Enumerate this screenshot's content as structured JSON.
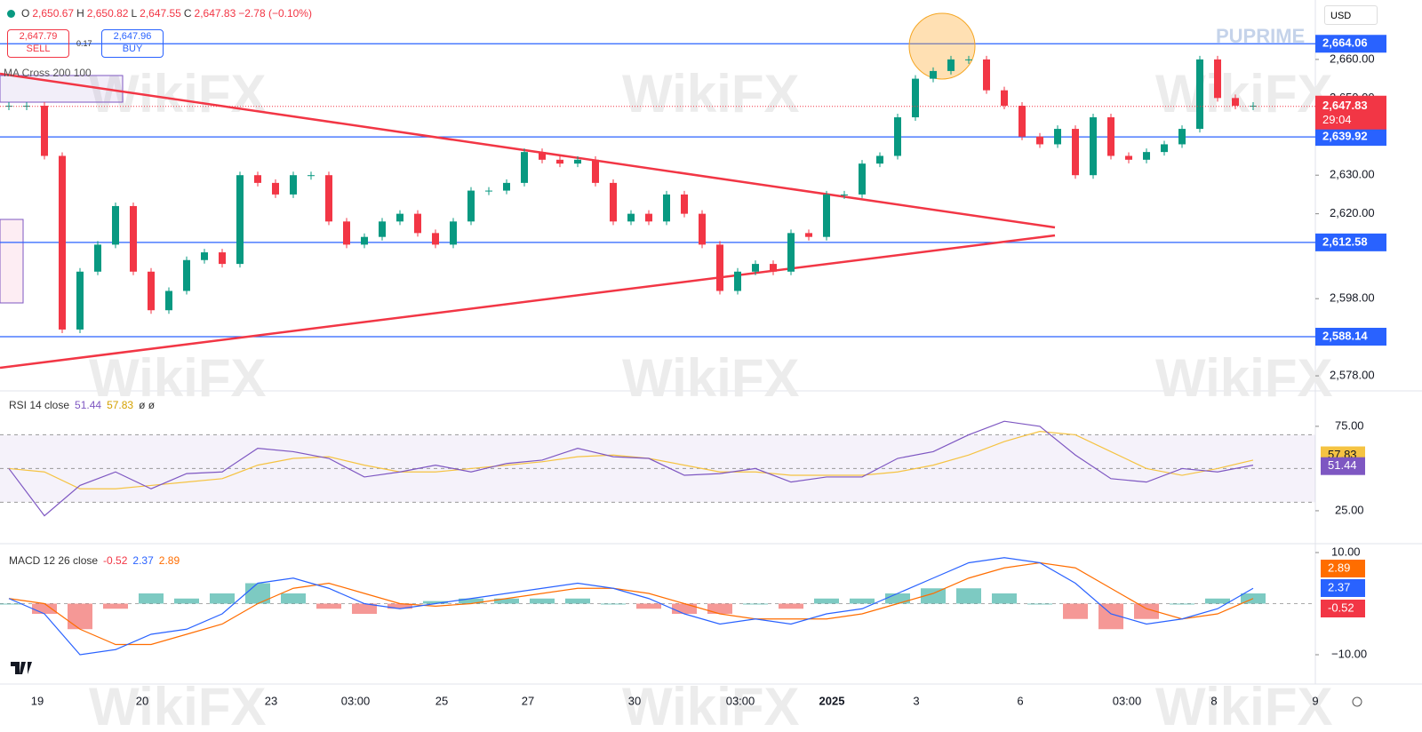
{
  "header": {
    "o_key": "O",
    "o": "2,650.67",
    "h_key": "H",
    "h": "2,650.82",
    "l_key": "L",
    "l": "2,647.55",
    "c_key": "C",
    "c": "2,647.83",
    "change": "−2.78 (−0.10%)"
  },
  "trade": {
    "sell_price": "2,647.79",
    "sell": "SELL",
    "spread": "0.17",
    "buy_price": "2,647.96",
    "buy": "BUY"
  },
  "ma_indicator": "MA Cross 200 100",
  "currency": "USD",
  "brand": "PUPRIME",
  "watermark": "WikiFX",
  "price_chart": {
    "type": "candlestick",
    "up_color": "#089981",
    "down_color": "#f23645",
    "level_color": "#2962ff",
    "closes": [
      2648,
      2648,
      2635,
      2590,
      2605,
      2612,
      2622,
      2605,
      2595,
      2600,
      2608,
      2610,
      2607,
      2630,
      2628,
      2625,
      2630,
      2630,
      2618,
      2612,
      2614,
      2618,
      2620,
      2615,
      2612,
      2618,
      2626,
      2626,
      2628,
      2636,
      2634,
      2633,
      2634,
      2628,
      2618,
      2620,
      2618,
      2625,
      2620,
      2612,
      2600,
      2605,
      2607,
      2605,
      2615,
      2614,
      2625,
      2625,
      2633,
      2635,
      2645,
      2655,
      2657,
      2660,
      2660,
      2652,
      2648,
      2640,
      2638,
      2642,
      2630,
      2645,
      2635,
      2634,
      2636,
      2638,
      2642,
      2660,
      2650,
      2648,
      2648
    ],
    "ylim": [
      2574.1,
      2675.4
    ],
    "yticks": [
      {
        "value": 2660,
        "label": "2,660.00"
      },
      {
        "value": 2650,
        "label": "2,650.00"
      },
      {
        "value": 2630,
        "label": "2,630.00"
      },
      {
        "value": 2620,
        "label": "2,620.00"
      },
      {
        "value": 2598,
        "label": "2,598.00"
      },
      {
        "value": 2578,
        "label": "2,578.00"
      }
    ],
    "levels": [
      {
        "value": 2664.06,
        "label": "2,664.06"
      },
      {
        "value": 2639.92,
        "label": "2,639.92"
      },
      {
        "value": 2612.58,
        "label": "2,612.58"
      },
      {
        "value": 2588.14,
        "label": "2,588.14"
      }
    ],
    "last_price": {
      "value": 2647.83,
      "label": "2,647.83"
    },
    "countdown": "29:04"
  },
  "rsi": {
    "title": "RSI 14 close",
    "last_rsi": 51.44,
    "last_ma": 57.83,
    "extra": "ø ø",
    "rsi_color": "#7e57c2",
    "ma_color": "#f5c342",
    "rsi": [
      50,
      22,
      40,
      48,
      38,
      47,
      48,
      62,
      60,
      56,
      45,
      48,
      52,
      48,
      53,
      55,
      62,
      57,
      56,
      46,
      47,
      50,
      42,
      45,
      45,
      56,
      60,
      70,
      78,
      75,
      58,
      44,
      42,
      50,
      48,
      52
    ],
    "rsi_ma": [
      50,
      48,
      38,
      38,
      40,
      42,
      44,
      52,
      56,
      57,
      52,
      48,
      48,
      50,
      52,
      54,
      57,
      58,
      56,
      52,
      48,
      48,
      46,
      46,
      46,
      48,
      52,
      58,
      66,
      72,
      70,
      60,
      50,
      46,
      50,
      55
    ],
    "ylim": [
      5.5,
      96
    ],
    "bands": [
      70,
      50,
      30
    ],
    "yticks": [
      {
        "value": 75,
        "label": "75.00"
      },
      {
        "value": 25,
        "label": "25.00"
      }
    ]
  },
  "macd": {
    "title": "MACD 12 26 close",
    "last_hist": -0.52,
    "last_macd": 2.37,
    "last_signal": 2.89,
    "macd_color": "#2962ff",
    "signal_color": "#ff6d00",
    "macd": [
      1,
      -2,
      -10,
      -9,
      -6,
      -5,
      -2,
      4,
      5,
      3,
      0,
      -1,
      0,
      1,
      2,
      3,
      4,
      3,
      1,
      -2,
      -4,
      -3,
      -4,
      -2,
      -1,
      2,
      5,
      8,
      9,
      8,
      4,
      -2,
      -4,
      -3,
      -1,
      3
    ],
    "signal": [
      1,
      0,
      -5,
      -8,
      -8,
      -6,
      -4,
      0,
      3,
      4,
      2,
      0,
      -0.5,
      0,
      1,
      2,
      3,
      3,
      2,
      0,
      -2,
      -3,
      -3,
      -3,
      -2,
      0,
      2,
      5,
      7,
      8,
      7,
      3,
      -1,
      -3,
      -2,
      1
    ],
    "histogram": [
      0,
      -2,
      -5,
      -1,
      2,
      1,
      2,
      4,
      2,
      -1,
      -2,
      -1,
      0.5,
      1,
      1,
      1,
      1,
      0,
      -1,
      -2,
      -2,
      0,
      -1,
      1,
      1,
      2,
      3,
      3,
      2,
      0,
      -3,
      -5,
      -3,
      0,
      1,
      2
    ],
    "ylim": [
      -15.74,
      11.74
    ],
    "yticks": [
      {
        "value": 10,
        "label": "10.00"
      },
      {
        "value": -10,
        "label": "−10.00"
      }
    ]
  },
  "time_labels": [
    "19",
    "20",
    "23",
    "03:00",
    "25",
    "27",
    "30",
    "03:00",
    "2025",
    "3",
    "6",
    "03:00",
    "8",
    "9"
  ]
}
